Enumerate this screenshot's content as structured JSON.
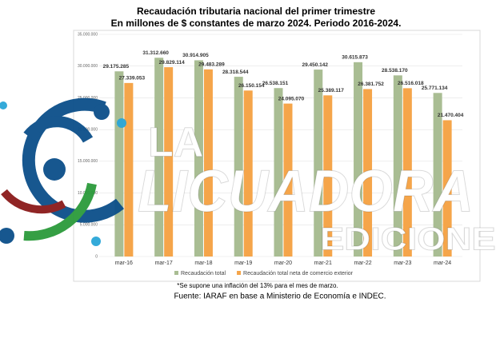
{
  "chart_data": {
    "type": "bar",
    "title": "Recaudación tributaria nacional del primer trimestre",
    "subtitle": "En millones de $ constantes de marzo 2024. Periodo 2016-2024.",
    "categories": [
      "mar-16",
      "mar-17",
      "mar-18",
      "mar-19",
      "mar-20",
      "mar-21",
      "mar-22",
      "mar-23",
      "mar-24"
    ],
    "series": [
      {
        "name": "Recaudación total",
        "color": "#a9bd93",
        "values": [
          29175285,
          31312660,
          30914905,
          28318544,
          26538151,
          29450142,
          30615873,
          28538170,
          25771134
        ],
        "value_labels": [
          "29.175.285",
          "31.312.660",
          "30.914.905",
          "28.318.544",
          "26.538.151",
          "29.450.142",
          "30.615.873",
          "28.538.170",
          "25.771.134"
        ]
      },
      {
        "name": "Recaudación total neta de comercio exterior",
        "color": "#f5a54a",
        "values": [
          27339053,
          29829114,
          29483289,
          26150154,
          24095070,
          25389117,
          26381752,
          26516018,
          21470404
        ],
        "value_labels": [
          "27.339.053",
          "29.829.114",
          "29.483.289",
          "26.150.154",
          "24.095.070",
          "25.389.117",
          "26.381.752",
          "26.516.018",
          "21.470.404"
        ]
      }
    ],
    "ylim": [
      0,
      35000000
    ],
    "yticks": [
      0,
      {
        "value": 5000000,
        "label": "5.000.000"
      },
      {
        "value": 10000000,
        "label": "10.000.000"
      },
      {
        "value": 15000000,
        "label": "15.000.000"
      },
      {
        "value": 20000000,
        "label": "20.000.000"
      },
      {
        "value": 25000000,
        "label": "25.000.000"
      },
      {
        "value": 30000000,
        "label": "30.000.000"
      },
      {
        "value": 35000000,
        "label": "35.000.000"
      }
    ],
    "grid": true,
    "legend": "bottom",
    "footnote": "*Se supone una inflación del 13% para el mes de marzo.",
    "source": "Fuente: IARAF en base a Ministerio de Economía e INDEC."
  },
  "watermark": {
    "line1": "LA",
    "line2": "LICUADORA",
    "line3": "EDICIONES"
  }
}
